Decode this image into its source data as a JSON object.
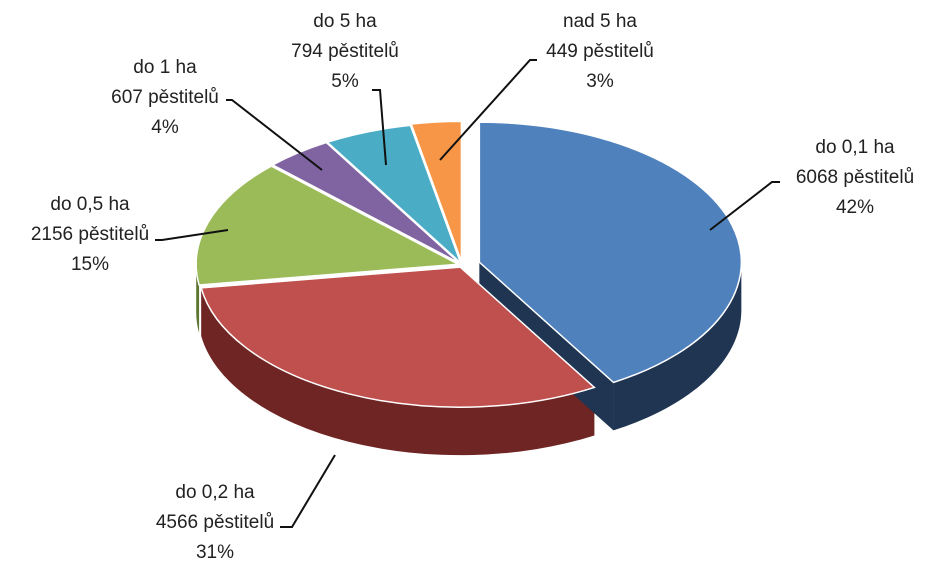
{
  "chart_data": {
    "type": "pie3d",
    "categories": [
      "do 0,1 ha",
      "do 0,2 ha",
      "do 0,5 ha",
      "do 1 ha",
      "do 5 ha",
      "nad 5 ha"
    ],
    "values": [
      6068,
      4566,
      2156,
      607,
      794,
      449
    ],
    "value_labels": [
      "6068 pěstitelů",
      "4566 pěstitelů",
      "2156 pěstitelů",
      "607 pěstitelů",
      "794 pěstitelů",
      "449 pěstitelů"
    ],
    "percents": [
      42,
      31,
      15,
      4,
      5,
      3
    ],
    "percent_labels": [
      "42%",
      "31%",
      "15%",
      "4%",
      "5%",
      "3%"
    ],
    "colors": [
      "#4f81bd",
      "#c0504d",
      "#9bbb59",
      "#8064a2",
      "#4bacc6",
      "#f79646"
    ],
    "side_colors": [
      "#1f3552",
      "#6e2523",
      "#5c7530",
      "#4a3866",
      "#27687a",
      "#a85c20"
    ]
  }
}
